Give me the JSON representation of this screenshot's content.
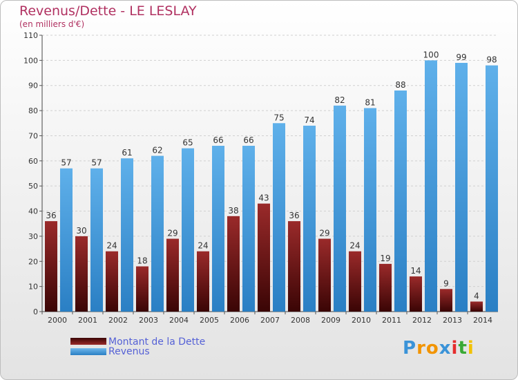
{
  "title": "Revenus/Dette - LE LESLAY",
  "subtitle": "(en milliers d'€)",
  "logo": {
    "text": "Proxiti"
  },
  "colors": {
    "debt": "#7a1010",
    "revenue": "#3a93d8",
    "title": "#b03060",
    "legend_text": "#5561d6"
  },
  "legend": [
    {
      "label": "Montant de la Dette"
    },
    {
      "label": "Revenus"
    }
  ],
  "chart_data": {
    "type": "bar",
    "title": "Revenus/Dette - LE LESLAY",
    "subtitle": "(en milliers d'€)",
    "categories": [
      "2000",
      "2001",
      "2002",
      "2003",
      "2004",
      "2005",
      "2006",
      "2007",
      "2008",
      "2009",
      "2010",
      "2011",
      "2012",
      "2013",
      "2014"
    ],
    "series": [
      {
        "name": "Montant de la Dette",
        "values": [
          36,
          30,
          24,
          18,
          29,
          24,
          38,
          43,
          36,
          29,
          24,
          19,
          14,
          9,
          4
        ]
      },
      {
        "name": "Revenus",
        "values": [
          57,
          57,
          61,
          62,
          65,
          66,
          66,
          75,
          74,
          82,
          81,
          88,
          100,
          99,
          98
        ]
      }
    ],
    "ylim": [
      0,
      110
    ],
    "yticks": [
      0,
      10,
      20,
      30,
      40,
      50,
      60,
      70,
      80,
      90,
      100,
      110
    ],
    "grid": true,
    "legend_position": "bottom-left",
    "data_labels": true
  }
}
